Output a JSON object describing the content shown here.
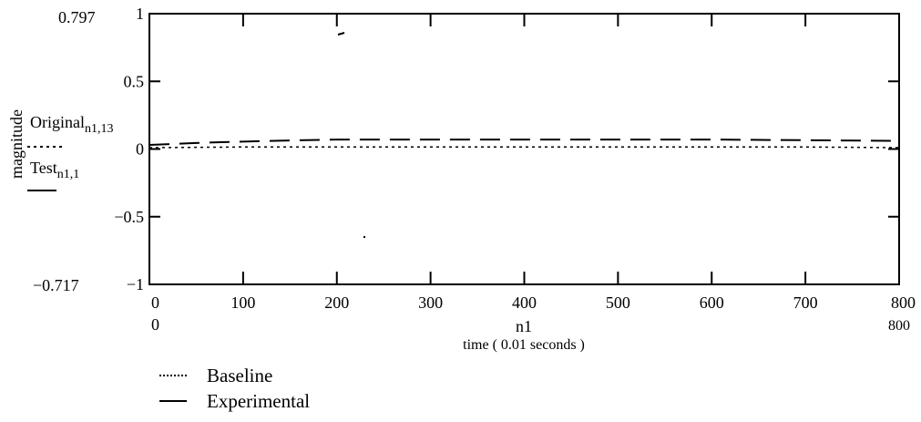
{
  "chart_data": {
    "type": "line",
    "ylabel": "magnitude",
    "xlabel_var": "n1",
    "xlabel": "time ( 0.01 seconds )",
    "xlim": [
      0,
      800
    ],
    "ylim": [
      -1,
      1
    ],
    "x_ticks": [
      0,
      100,
      200,
      300,
      400,
      500,
      600,
      700,
      800
    ],
    "x_tick_labels": [
      "0",
      "100",
      "200",
      "300",
      "400",
      "500",
      "600",
      "700",
      "800"
    ],
    "y_ticks": [
      -1,
      -0.5,
      0,
      0.5,
      1
    ],
    "y_tick_labels": [
      "−1",
      "−0.5",
      "0",
      "0.5",
      "1"
    ],
    "y_range_labels": {
      "top": "0.797",
      "bottom": "−0.717"
    },
    "x_range_labels": {
      "left": "0",
      "right": "800"
    },
    "expr_labels": [
      {
        "name": "Original",
        "subscript": "n1,13"
      },
      {
        "name": "Test",
        "subscript": "n1,1"
      }
    ],
    "grid": false,
    "series": [
      {
        "name": "Baseline",
        "style": "dotted",
        "x": [
          0,
          100,
          200,
          300,
          400,
          500,
          600,
          700,
          800
        ],
        "values": [
          0.01,
          0.015,
          0.015,
          0.015,
          0.015,
          0.015,
          0.015,
          0.015,
          0.01
        ]
      },
      {
        "name": "Experimental",
        "style": "dashed",
        "x": [
          0,
          50,
          100,
          160,
          200,
          300,
          400,
          500,
          600,
          700,
          800
        ],
        "values": [
          0.03,
          0.045,
          0.055,
          0.065,
          0.07,
          0.07,
          0.07,
          0.07,
          0.07,
          0.065,
          0.06
        ]
      }
    ],
    "legend": {
      "position": "bottom-left",
      "entries": [
        "Baseline",
        "Experimental"
      ]
    }
  }
}
